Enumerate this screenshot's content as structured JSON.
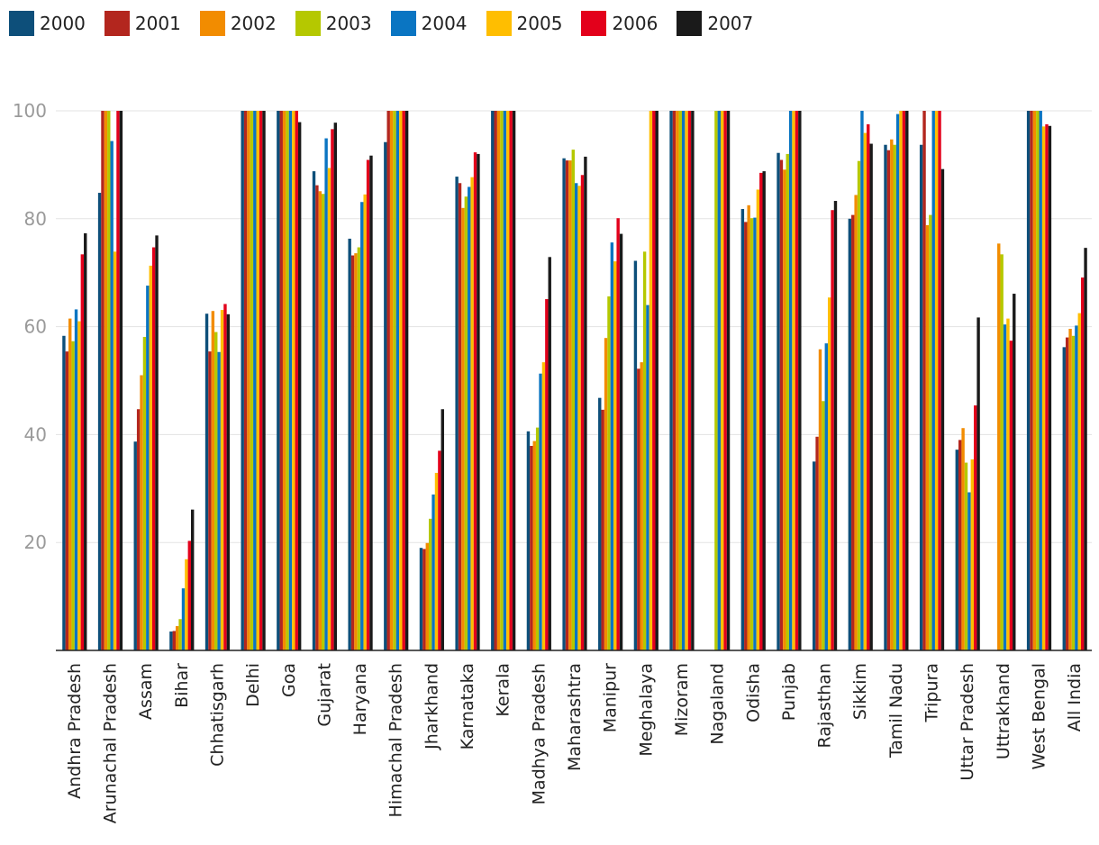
{
  "chart_data": {
    "type": "bar",
    "title": "",
    "xlabel": "",
    "ylabel": "",
    "ylim": [
      0,
      100
    ],
    "yticks": [
      20,
      40,
      60,
      80,
      100
    ],
    "grid": true,
    "legend_position": "top-left",
    "categories": [
      "Andhra Pradesh",
      "Arunachal Pradesh",
      "Assam",
      "Bihar",
      "Chhatisgarh",
      "Delhi",
      "Goa",
      "Gujarat",
      "Haryana",
      "Himachal Pradesh",
      "Jharkhand",
      "Karnataka",
      "Kerala",
      "Madhya Pradesh",
      "Maharashtra",
      "Manipur",
      "Meghalaya",
      "Mizoram",
      "Nagaland",
      "Odisha",
      "Punjab",
      "Rajasthan",
      "Sikkim",
      "Tamil Nadu",
      "Tripura",
      "Uttar Pradesh",
      "Uttrakhand",
      "West Bengal",
      "All India"
    ],
    "series": [
      {
        "name": "2000",
        "color": "#0d4f7a",
        "values": [
          58.3,
          84.8,
          38.7,
          3.5,
          62.4,
          100,
          100,
          88.8,
          76.3,
          94.2,
          19.0,
          87.8,
          100,
          40.6,
          91.2,
          46.8,
          72.2,
          100,
          null,
          81.8,
          92.2,
          35.0,
          80.0,
          93.7,
          93.7,
          37.2,
          null,
          100,
          56.2
        ]
      },
      {
        "name": "2001",
        "color": "#b3261e",
        "values": [
          55.4,
          100,
          44.7,
          3.6,
          55.4,
          100,
          100,
          86.2,
          73.2,
          100,
          18.8,
          86.6,
          100,
          37.9,
          90.8,
          44.6,
          52.2,
          100,
          null,
          79.4,
          90.9,
          39.6,
          80.7,
          92.7,
          100,
          39.0,
          null,
          100,
          58.0
        ]
      },
      {
        "name": "2002",
        "color": "#f28c00",
        "values": [
          61.5,
          100,
          51.0,
          4.5,
          62.9,
          100,
          100,
          85.1,
          73.6,
          100,
          19.9,
          82.0,
          100,
          38.8,
          90.8,
          57.9,
          53.4,
          100,
          null,
          82.5,
          89.1,
          55.8,
          84.4,
          94.7,
          78.8,
          41.2,
          75.4,
          100,
          59.6
        ]
      },
      {
        "name": "2003",
        "color": "#b5c800",
        "values": [
          57.3,
          100,
          58.1,
          5.8,
          59.0,
          100,
          100,
          84.6,
          74.7,
          100,
          24.4,
          84.1,
          100,
          41.3,
          92.8,
          65.6,
          73.9,
          100,
          100,
          80.1,
          92.0,
          46.2,
          90.7,
          93.7,
          80.7,
          34.8,
          73.4,
          100,
          58.3
        ]
      },
      {
        "name": "2004",
        "color": "#0a75c2",
        "values": [
          63.2,
          94.4,
          67.6,
          11.5,
          55.3,
          100,
          100,
          94.9,
          83.1,
          100,
          28.9,
          85.9,
          100,
          51.3,
          86.6,
          75.6,
          64.0,
          100,
          100,
          80.2,
          100,
          56.9,
          100,
          99.4,
          100,
          29.3,
          60.4,
          100,
          60.2
        ]
      },
      {
        "name": "2005",
        "color": "#ffbe00",
        "values": [
          61.0,
          73.9,
          71.3,
          16.9,
          63.1,
          100,
          100,
          89.4,
          84.5,
          100,
          32.9,
          87.7,
          100,
          53.4,
          86.1,
          72.1,
          100,
          100,
          100,
          85.4,
          100,
          65.4,
          95.9,
          100,
          100,
          35.4,
          61.5,
          97.1,
          62.5
        ]
      },
      {
        "name": "2006",
        "color": "#e3001b",
        "values": [
          73.4,
          100,
          74.7,
          20.3,
          64.2,
          100,
          100,
          96.6,
          90.9,
          100,
          37.0,
          92.3,
          100,
          65.1,
          88.1,
          80.1,
          100,
          100,
          100,
          88.5,
          100,
          81.6,
          97.5,
          100,
          100,
          45.4,
          57.4,
          97.5,
          69.1
        ]
      },
      {
        "name": "2007",
        "color": "#1a1a1a",
        "values": [
          77.3,
          100,
          76.9,
          26.1,
          62.3,
          100,
          97.9,
          97.8,
          91.7,
          100,
          44.7,
          92.0,
          100,
          72.9,
          91.5,
          77.2,
          100,
          100,
          100,
          88.8,
          100,
          83.3,
          93.9,
          100,
          89.2,
          61.7,
          66.1,
          97.2,
          74.6
        ]
      }
    ]
  }
}
